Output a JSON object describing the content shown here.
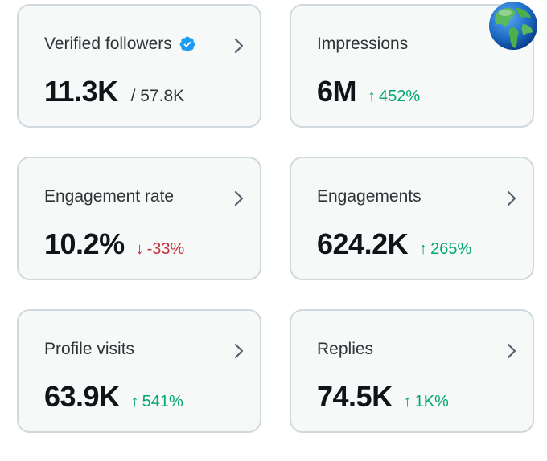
{
  "cards": [
    {
      "title": "Verified followers",
      "value": "11.3K",
      "total": "/ 57.8K",
      "has_chevron": true,
      "has_verified_badge": true
    },
    {
      "title": "Impressions",
      "value": "6M",
      "delta_arrow": "↑",
      "delta": "452%",
      "trend": "up",
      "has_chevron": false
    },
    {
      "title": "Engagement rate",
      "value": "10.2%",
      "delta_arrow": "↓",
      "delta": "-33%",
      "trend": "down",
      "has_chevron": true
    },
    {
      "title": "Engagements",
      "value": "624.2K",
      "delta_arrow": "↑",
      "delta": "265%",
      "trend": "up",
      "has_chevron": true
    },
    {
      "title": "Profile visits",
      "value": "63.9K",
      "delta_arrow": "↑",
      "delta": "541%",
      "trend": "up",
      "has_chevron": true
    },
    {
      "title": "Replies",
      "value": "74.5K",
      "delta_arrow": "↑",
      "delta": "1K%",
      "trend": "up",
      "has_chevron": true
    }
  ],
  "colors": {
    "up": "#00a86b",
    "down": "#c4303b",
    "verified": "#1d9bf0",
    "border": "#cfd9de",
    "card_bg": "#f7f9f9"
  },
  "icons": {
    "verified": "verified-badge-icon",
    "chevron": "chevron-right-icon",
    "globe": "globe-emoji-icon"
  }
}
